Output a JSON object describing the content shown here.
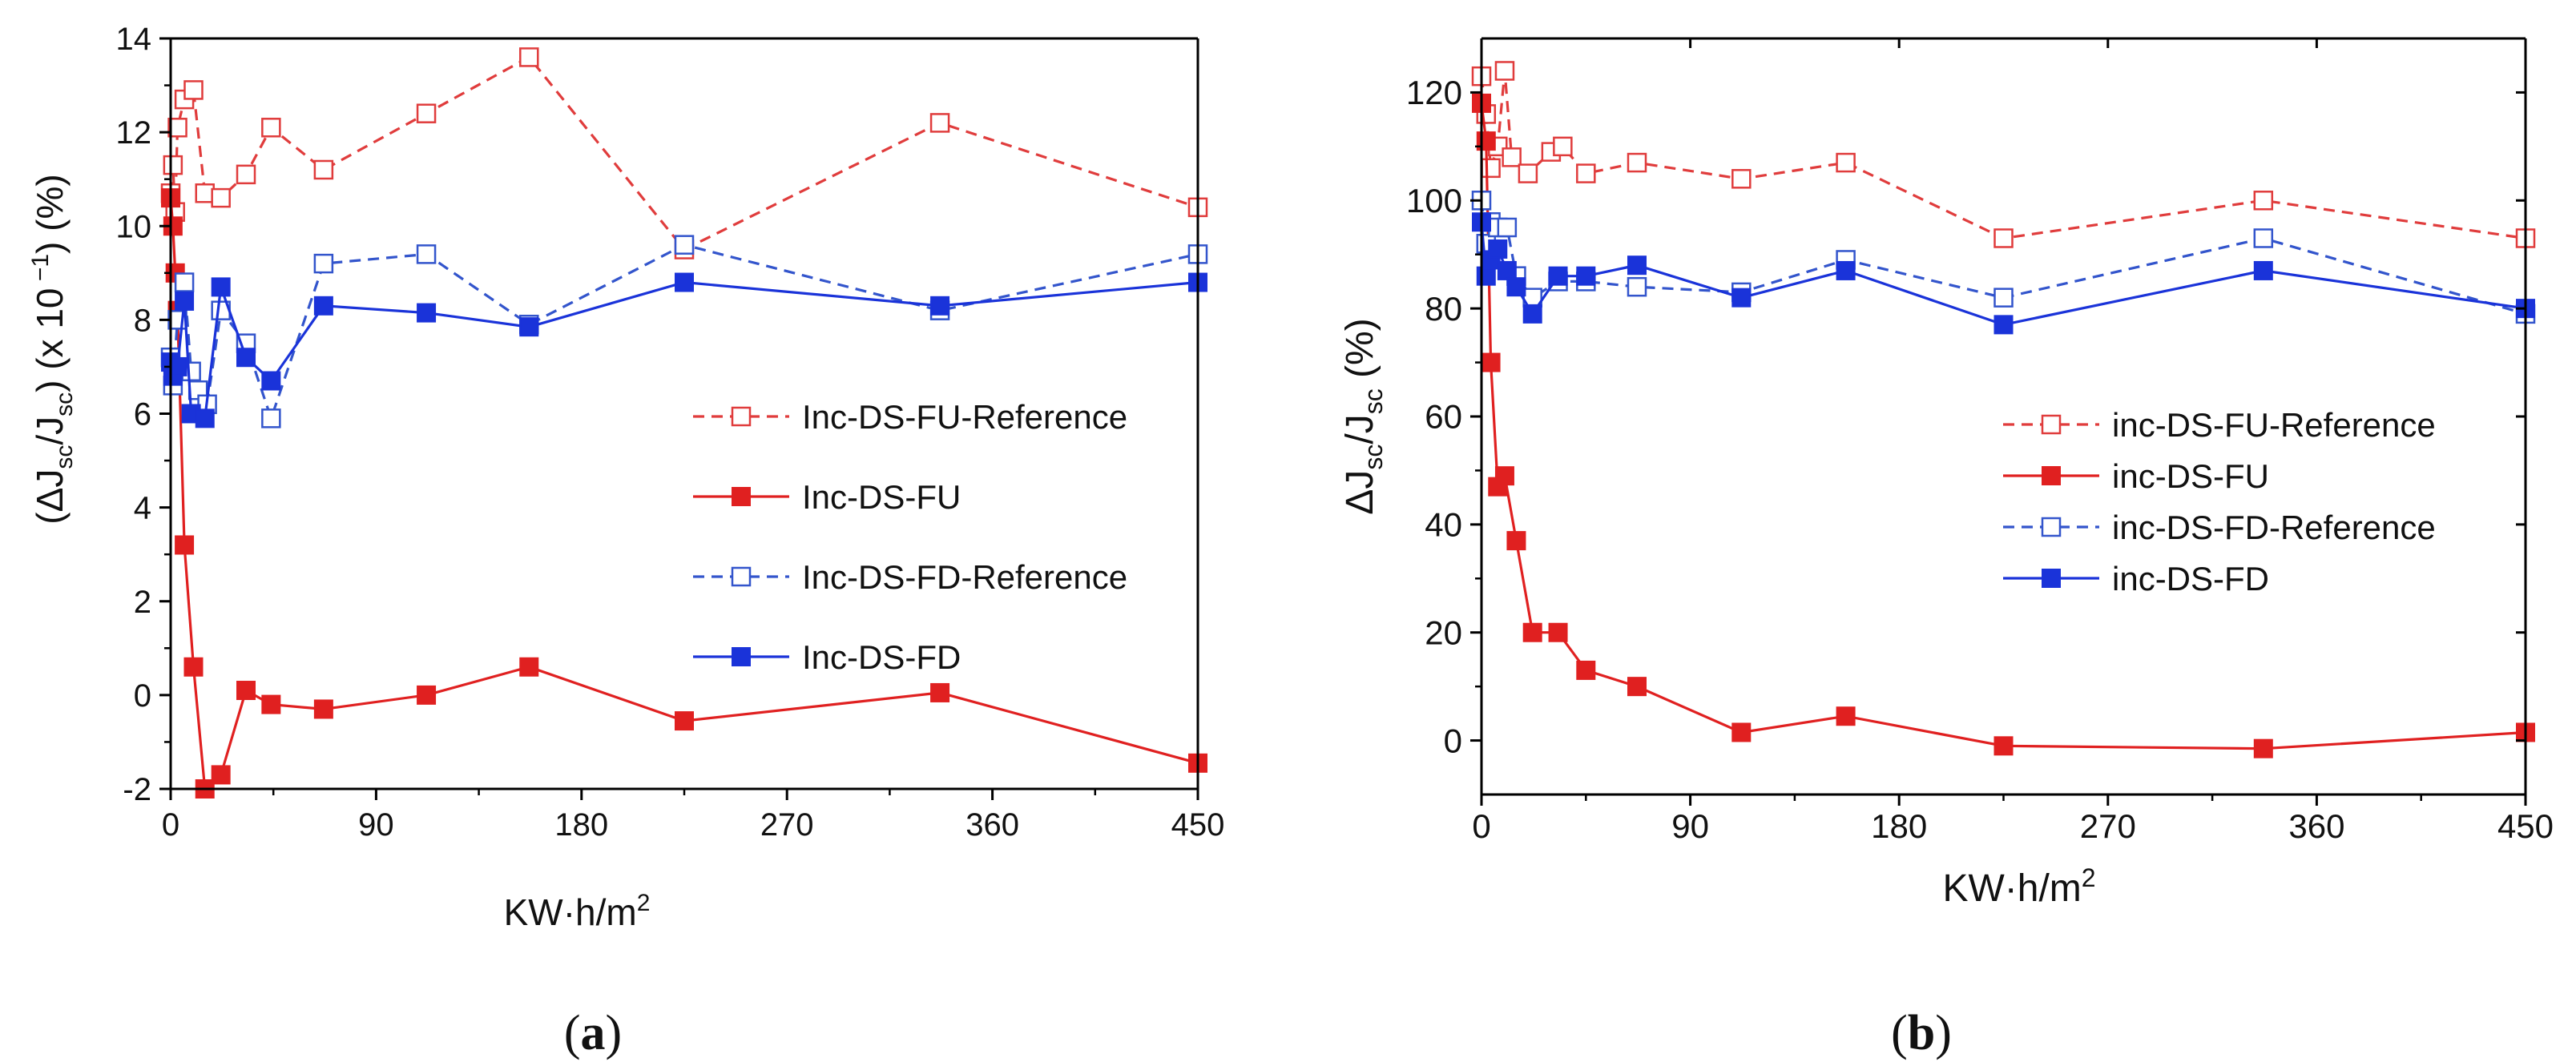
{
  "chart_data": [
    {
      "panel_label_letter": "a",
      "type": "line",
      "xlabel": "KW·h/m",
      "xlabel_sup": "2",
      "ylabel_parts": [
        "(ΔJ",
        "sc",
        "/J",
        "sc",
        ") (x 10",
        " −1",
        ") (%)"
      ],
      "xlim": [
        0,
        450
      ],
      "ylim": [
        -2,
        14
      ],
      "xticks": [
        "0",
        "90",
        "180",
        "270",
        "360",
        "450"
      ],
      "yticks": [
        "-2",
        "0",
        "2",
        "4",
        "6",
        "8",
        "10",
        "12",
        "14"
      ],
      "legend_position": "center-right",
      "series": [
        {
          "name": "Inc-DS-FU-Reference",
          "color": "#e03c3c",
          "line": "dashed",
          "marker": "open-square",
          "points": [
            [
              0,
              10.7
            ],
            [
              1,
              11.3
            ],
            [
              2,
              10.3
            ],
            [
              3,
              12.1
            ],
            [
              6,
              12.7
            ],
            [
              10,
              12.9
            ],
            [
              15,
              10.7
            ],
            [
              22,
              10.6
            ],
            [
              33,
              11.1
            ],
            [
              44,
              12.1
            ],
            [
              67,
              11.2
            ],
            [
              112,
              12.4
            ],
            [
              157,
              13.6
            ],
            [
              225,
              9.5
            ],
            [
              337,
              12.2
            ],
            [
              450,
              10.4
            ]
          ]
        },
        {
          "name": "Inc-DS-FU",
          "color": "#e02020",
          "line": "solid",
          "marker": "filled-square",
          "points": [
            [
              0,
              10.6
            ],
            [
              1,
              10.0
            ],
            [
              2,
              9.0
            ],
            [
              3,
              8.2
            ],
            [
              6,
              3.2
            ],
            [
              10,
              0.6
            ],
            [
              15,
              -2.0
            ],
            [
              22,
              -1.7
            ],
            [
              33,
              0.1
            ],
            [
              44,
              -0.2
            ],
            [
              67,
              -0.3
            ],
            [
              112,
              0.0
            ],
            [
              157,
              0.6
            ],
            [
              225,
              -0.55
            ],
            [
              337,
              0.05
            ],
            [
              450,
              -1.45
            ]
          ]
        },
        {
          "name": "Inc-DS-FD-Reference",
          "color": "#3355cc",
          "line": "dashed",
          "marker": "open-square",
          "points": [
            [
              0,
              7.2
            ],
            [
              1,
              6.6
            ],
            [
              3,
              8.0
            ],
            [
              6,
              8.8
            ],
            [
              9,
              6.9
            ],
            [
              12,
              6.5
            ],
            [
              16,
              6.2
            ],
            [
              22,
              8.2
            ],
            [
              33,
              7.5
            ],
            [
              44,
              5.9
            ],
            [
              67,
              9.2
            ],
            [
              112,
              9.4
            ],
            [
              157,
              7.9
            ],
            [
              225,
              9.6
            ],
            [
              337,
              8.2
            ],
            [
              450,
              9.4
            ]
          ]
        },
        {
          "name": "Inc-DS-FD",
          "color": "#1a33d9",
          "line": "solid",
          "marker": "filled-square",
          "points": [
            [
              0,
              7.1
            ],
            [
              1,
              6.8
            ],
            [
              3,
              7.0
            ],
            [
              6,
              8.4
            ],
            [
              9,
              6.0
            ],
            [
              15,
              5.9
            ],
            [
              22,
              8.7
            ],
            [
              33,
              7.2
            ],
            [
              44,
              6.7
            ],
            [
              67,
              8.3
            ],
            [
              112,
              8.15
            ],
            [
              157,
              7.85
            ],
            [
              225,
              8.8
            ],
            [
              337,
              8.3
            ],
            [
              450,
              8.8
            ]
          ]
        }
      ]
    },
    {
      "panel_label_letter": "b",
      "type": "line",
      "xlabel": "KW·h/m",
      "xlabel_sup": "2",
      "ylabel_parts": [
        "ΔJ",
        "sc",
        "/J",
        "sc",
        " (%)"
      ],
      "xlim": [
        0,
        450
      ],
      "ylim": [
        -10,
        130
      ],
      "xticks": [
        "0",
        "90",
        "180",
        "270",
        "360",
        "450"
      ],
      "yticks": [
        "0",
        "20",
        "40",
        "60",
        "80",
        "100",
        "120"
      ],
      "legend_position": "center-right",
      "series": [
        {
          "name": "inc-DS-FU-Reference",
          "color": "#e03c3c",
          "line": "dashed",
          "marker": "open-square",
          "points": [
            [
              0,
              123
            ],
            [
              2,
              116
            ],
            [
              4,
              106
            ],
            [
              7,
              110
            ],
            [
              10,
              124
            ],
            [
              13,
              108
            ],
            [
              20,
              105
            ],
            [
              30,
              109
            ],
            [
              35,
              110
            ],
            [
              45,
              105
            ],
            [
              67,
              107
            ],
            [
              112,
              104
            ],
            [
              157,
              107
            ],
            [
              225,
              93
            ],
            [
              337,
              100
            ],
            [
              450,
              93
            ]
          ]
        },
        {
          "name": "inc-DS-FU",
          "color": "#e02020",
          "line": "solid",
          "marker": "filled-square",
          "points": [
            [
              0,
              118
            ],
            [
              2,
              111
            ],
            [
              4,
              70
            ],
            [
              7,
              47
            ],
            [
              10,
              49
            ],
            [
              15,
              37
            ],
            [
              22,
              20
            ],
            [
              33,
              20
            ],
            [
              45,
              13
            ],
            [
              67,
              10
            ],
            [
              112,
              1.5
            ],
            [
              157,
              4.5
            ],
            [
              225,
              -1
            ],
            [
              337,
              -1.5
            ],
            [
              450,
              1.5
            ]
          ]
        },
        {
          "name": "inc-DS-FD-Reference",
          "color": "#3355cc",
          "line": "dashed",
          "marker": "open-square",
          "points": [
            [
              0,
              100
            ],
            [
              2,
              92
            ],
            [
              4,
              96
            ],
            [
              7,
              95
            ],
            [
              11,
              95
            ],
            [
              15,
              86
            ],
            [
              22,
              82
            ],
            [
              33,
              85
            ],
            [
              45,
              85
            ],
            [
              67,
              84
            ],
            [
              112,
              83
            ],
            [
              157,
              89
            ],
            [
              225,
              82
            ],
            [
              337,
              93
            ],
            [
              450,
              79
            ]
          ]
        },
        {
          "name": "inc-DS-FD",
          "color": "#1a33d9",
          "line": "solid",
          "marker": "filled-square",
          "points": [
            [
              0,
              96
            ],
            [
              2,
              86
            ],
            [
              4,
              89
            ],
            [
              7,
              91
            ],
            [
              11,
              87
            ],
            [
              15,
              84
            ],
            [
              22,
              79
            ],
            [
              33,
              86
            ],
            [
              45,
              86
            ],
            [
              67,
              88
            ],
            [
              112,
              82
            ],
            [
              157,
              87
            ],
            [
              225,
              77
            ],
            [
              337,
              87
            ],
            [
              450,
              80
            ]
          ]
        }
      ]
    }
  ]
}
